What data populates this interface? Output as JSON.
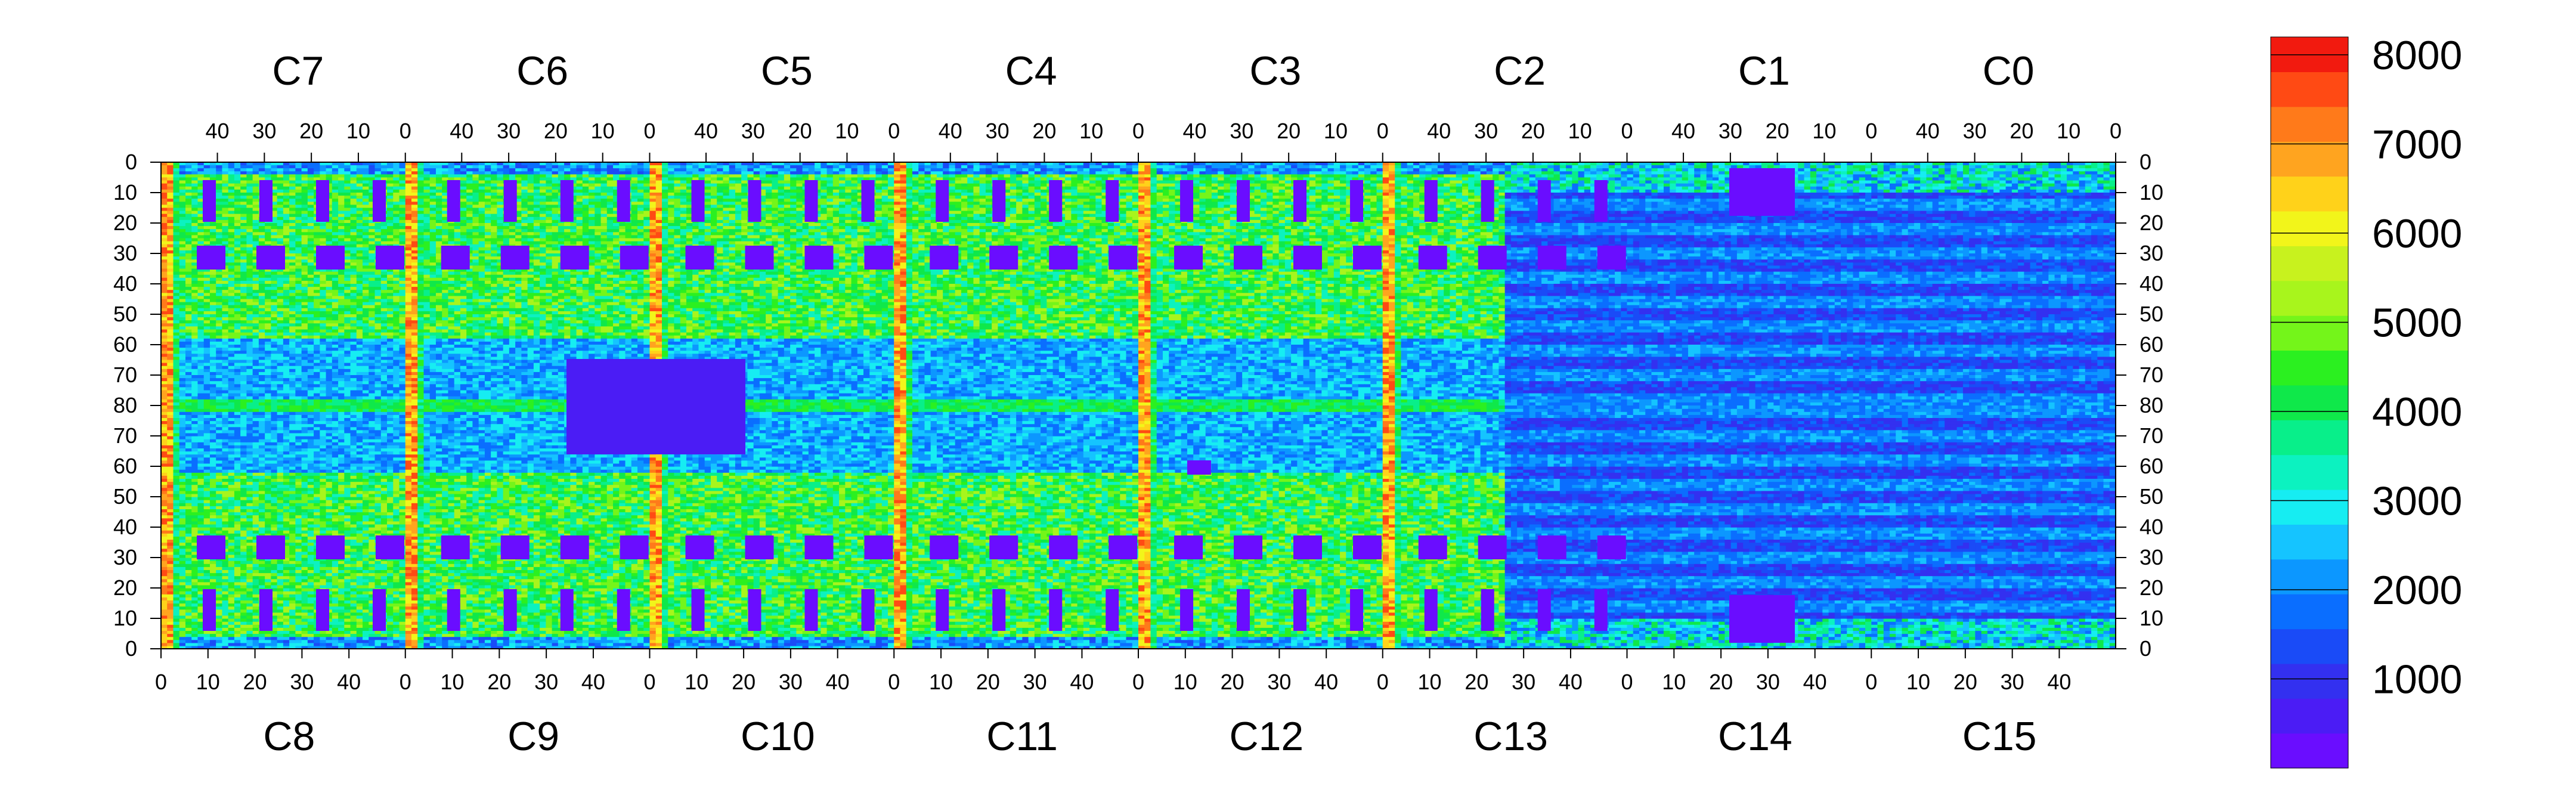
{
  "chart_data": {
    "type": "heatmap",
    "title": "",
    "xlabel": "",
    "ylabel": "",
    "top_chip_labels": [
      "C7",
      "C6",
      "C5",
      "C4",
      "C3",
      "C2",
      "C1",
      "C0"
    ],
    "bottom_chip_labels": [
      "C8",
      "C9",
      "C10",
      "C11",
      "C12",
      "C13",
      "C14",
      "C15"
    ],
    "top_x_ticks": [
      "40",
      "30",
      "20",
      "10",
      "0"
    ],
    "bottom_x_ticks": [
      "0",
      "10",
      "20",
      "30",
      "40"
    ],
    "y_ticks": [
      "0",
      "10",
      "20",
      "30",
      "40",
      "50",
      "60",
      "70",
      "80",
      "70",
      "60",
      "50",
      "40",
      "30",
      "20",
      "10",
      "0"
    ],
    "columns_per_chip": 52,
    "rows_per_half": 80,
    "zlim": [
      0,
      8200
    ],
    "colorbar": {
      "ticks": [
        "8000",
        "7000",
        "6000",
        "5000",
        "4000",
        "3000",
        "2000",
        "1000"
      ],
      "tick_values": [
        8000,
        7000,
        6000,
        5000,
        4000,
        3000,
        2000,
        1000
      ]
    },
    "palette": [
      "#6a0dff",
      "#4b1cf5",
      "#3330f0",
      "#1a4bf7",
      "#0a6eff",
      "#0c97ff",
      "#15c4ff",
      "#16edf2",
      "#0cf2c0",
      "#08ef8a",
      "#0fe84a",
      "#2bf020",
      "#74f51a",
      "#a8f51c",
      "#c8f21e",
      "#f2f51a",
      "#ffd21a",
      "#ffa41f",
      "#ff7a1a",
      "#ff4a14",
      "#f21a0f"
    ],
    "colors": {
      "background": "#ffffff",
      "frame": "#000000"
    }
  }
}
